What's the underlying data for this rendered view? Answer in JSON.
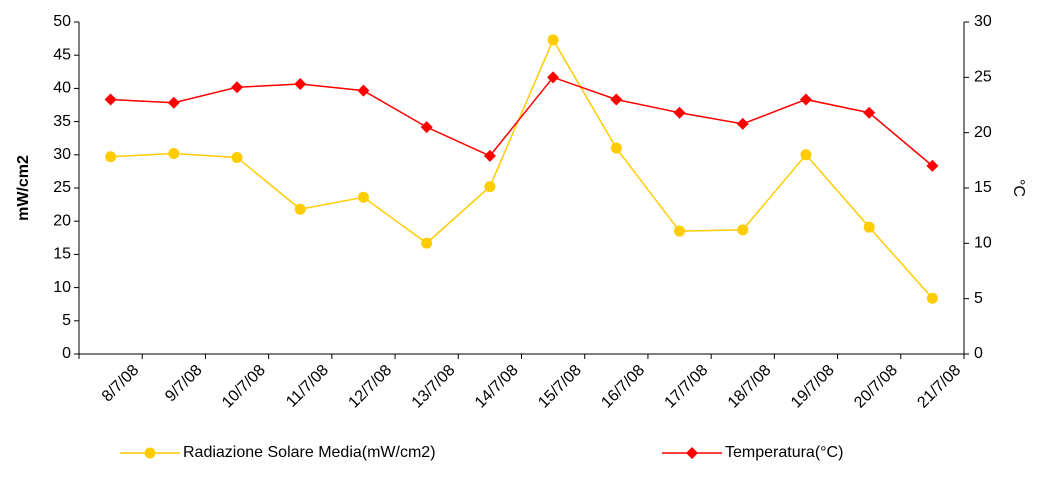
{
  "chart_data": {
    "type": "line",
    "categories": [
      "8/7/08",
      "9/7/08",
      "10/7/08",
      "11/7/08",
      "12/7/08",
      "13/7/08",
      "14/7/08",
      "15/7/08",
      "16/7/08",
      "17/7/08",
      "18/7/08",
      "19/7/08",
      "20/7/08",
      "21/7/08"
    ],
    "series": [
      {
        "name": "Radiazione Solare Media(mW/cm2)",
        "color": "#ffcc00",
        "marker": "circle",
        "values": [
          29.7,
          30.2,
          29.6,
          21.8,
          23.6,
          16.7,
          25.2,
          47.3,
          31.0,
          18.5,
          18.7,
          30.0,
          19.1,
          8.4
        ]
      },
      {
        "name": "Temperatura(°C)",
        "color": "#ff0000",
        "marker": "diamond",
        "axis": "y2",
        "values": [
          23.0,
          22.7,
          24.1,
          24.4,
          23.8,
          20.5,
          17.9,
          25.0,
          23.0,
          21.8,
          20.8,
          23.0,
          21.8,
          17.0
        ]
      }
    ],
    "ylabel": "mW/cm2",
    "y2label": "°C",
    "ylim": [
      0,
      50
    ],
    "yticks": [
      0,
      5,
      10,
      15,
      20,
      25,
      30,
      35,
      40,
      45,
      50
    ],
    "y2lim": [
      0,
      30
    ],
    "y2ticks": [
      0,
      5,
      10,
      15,
      20,
      25,
      30
    ],
    "legend": "bottom",
    "grid": false
  }
}
